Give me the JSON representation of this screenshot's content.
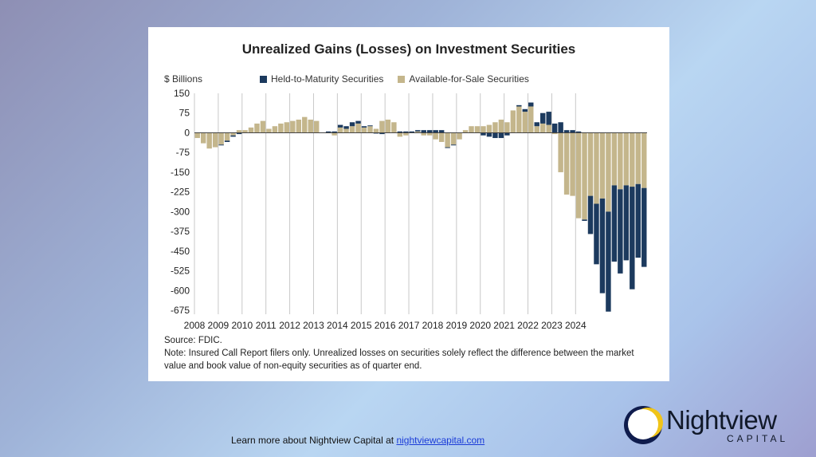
{
  "chart_data": {
    "type": "bar",
    "stacked": true,
    "title": "Unrealized Gains (Losses) on Investment Securities",
    "ylabel": "$ Billions",
    "ylim": [
      -690,
      150
    ],
    "yticks": [
      150,
      75,
      0,
      -75,
      -150,
      -225,
      -300,
      -375,
      -450,
      -525,
      -600,
      -675
    ],
    "xticks": [
      "2008",
      "2009",
      "2010",
      "2011",
      "2012",
      "2013",
      "2014",
      "2015",
      "2016",
      "2017",
      "2018",
      "2019",
      "2020",
      "2021",
      "2022",
      "2023",
      "2024"
    ],
    "legend_position": "top",
    "colors": {
      "htm": "#1c3a5e",
      "afs": "#c4b68c"
    },
    "series": [
      {
        "name": "Held-to-Maturity Securities",
        "values": [
          0,
          0,
          0,
          0,
          -3,
          -5,
          -5,
          -5,
          0,
          0,
          0,
          0,
          0,
          0,
          0,
          0,
          0,
          0,
          0,
          0,
          0,
          0,
          5,
          5,
          10,
          10,
          15,
          10,
          5,
          3,
          -3,
          -5,
          0,
          0,
          5,
          5,
          5,
          5,
          10,
          10,
          10,
          10,
          -3,
          -3,
          0,
          0,
          0,
          0,
          -10,
          -15,
          -20,
          -20,
          -10,
          0,
          5,
          10,
          15,
          15,
          40,
          50,
          35,
          40,
          10,
          10,
          5,
          -5,
          -145,
          -230,
          -360,
          -380,
          -290,
          -320,
          -285,
          -390,
          -280,
          -300
        ]
      },
      {
        "name": "Available-for-Sale Securities",
        "values": [
          -20,
          -40,
          -60,
          -55,
          -45,
          -30,
          -10,
          10,
          10,
          20,
          35,
          45,
          15,
          25,
          35,
          40,
          45,
          50,
          60,
          50,
          45,
          0,
          -2,
          -10,
          20,
          15,
          25,
          35,
          20,
          25,
          15,
          45,
          50,
          40,
          -15,
          -10,
          0,
          5,
          -10,
          -10,
          -25,
          -35,
          -55,
          -45,
          -25,
          10,
          25,
          25,
          25,
          30,
          40,
          50,
          40,
          85,
          100,
          80,
          100,
          25,
          35,
          30,
          -5,
          -150,
          -235,
          -240,
          -325,
          -330,
          -240,
          -270,
          -250,
          -300,
          -200,
          -215,
          -200,
          -205,
          -195,
          -210
        ]
      }
    ],
    "source": "Source: FDIC.",
    "note": "Note: Insured Call Report filers only. Unrealized losses on securities solely reflect the difference between the market value and book value of non-equity securities as of quarter end."
  },
  "footer": {
    "text": "Learn more about Nightview Capital at ",
    "link": "nightviewcapital.com"
  },
  "logo": {
    "name": "Nightview",
    "sub": "CAPITAL"
  }
}
